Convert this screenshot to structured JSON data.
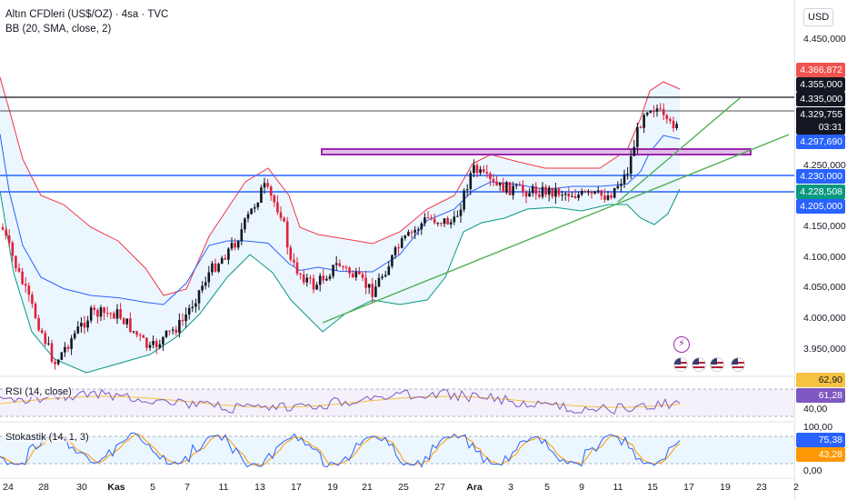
{
  "legend": {
    "symbol": "Altın CFDleri (US$/OZ) · 4sa · TVC",
    "bb": "BB (20, SMA, close, 2)"
  },
  "currency": "USD",
  "price_ticks": [
    "4.450,000",
    "4.250,000",
    "4.150,000",
    "4.100,000",
    "4.050,000",
    "4.000,000",
    "3.950,000"
  ],
  "price_tags": [
    {
      "label": "4.366,872",
      "color": "#ef5350"
    },
    {
      "label": "4.355,000",
      "color": "#131722"
    },
    {
      "label": "4.335,000",
      "color": "#131722"
    },
    {
      "label": "4.329,755",
      "color": "#131722"
    },
    {
      "label": "03:31",
      "color": "#131722"
    },
    {
      "label": "4.297,690",
      "color": "#2962ff"
    },
    {
      "label": "4.230,000",
      "color": "#2962ff"
    },
    {
      "label": "4.228,508",
      "color": "#089981"
    },
    {
      "label": "4.205,000",
      "color": "#2962ff"
    }
  ],
  "rsi": {
    "label": "RSI (14, close)",
    "tags": [
      {
        "label": "62,90",
        "color": "#f5c242",
        "text": "#131722"
      },
      {
        "label": "61,28",
        "color": "#7e57c2",
        "text": "#ffffff"
      }
    ],
    "ticks": [
      "40,00"
    ]
  },
  "stoch": {
    "label": "Stokastik (14, 1, 3)",
    "ticks": [
      "100,00",
      "0,00"
    ],
    "tags": [
      {
        "label": "75,38",
        "color": "#2962ff",
        "text": "#ffffff"
      },
      {
        "label": "43,28",
        "color": "#ff9800",
        "text": "#ffffff"
      }
    ]
  },
  "time_ticks": [
    {
      "label": "24",
      "bold": false
    },
    {
      "label": "28",
      "bold": false
    },
    {
      "label": "30",
      "bold": false
    },
    {
      "label": "Kas",
      "bold": true
    },
    {
      "label": "5",
      "bold": false
    },
    {
      "label": "7",
      "bold": false
    },
    {
      "label": "11",
      "bold": false
    },
    {
      "label": "13",
      "bold": false
    },
    {
      "label": "17",
      "bold": false
    },
    {
      "label": "19",
      "bold": false
    },
    {
      "label": "21",
      "bold": false
    },
    {
      "label": "25",
      "bold": false
    },
    {
      "label": "27",
      "bold": false
    },
    {
      "label": "Ara",
      "bold": true
    },
    {
      "label": "3",
      "bold": false
    },
    {
      "label": "5",
      "bold": false
    },
    {
      "label": "9",
      "bold": false
    },
    {
      "label": "11",
      "bold": false
    },
    {
      "label": "15",
      "bold": false
    },
    {
      "label": "17",
      "bold": false
    },
    {
      "label": "19",
      "bold": false
    },
    {
      "label": "23",
      "bold": false
    },
    {
      "label": "2",
      "bold": false
    }
  ],
  "colors": {
    "up": "#131722",
    "down": "#e0203a",
    "bb_upper": "#f23645",
    "bb_lower": "#089981",
    "bb_basis": "#2962ff",
    "bb_fill": "#e3f2fd",
    "trend": "#4caf50",
    "zone": "#9c27b0",
    "hline_black": "#131722",
    "hline_blue": "#2962ff",
    "rsi_line": "#7e57c2",
    "rsi_ma": "#f5c242",
    "stoch_k": "#2962ff",
    "stoch_d": "#ff9800"
  },
  "icons": [
    "lightning-event-icon",
    "us-flag-event-icon"
  ]
}
